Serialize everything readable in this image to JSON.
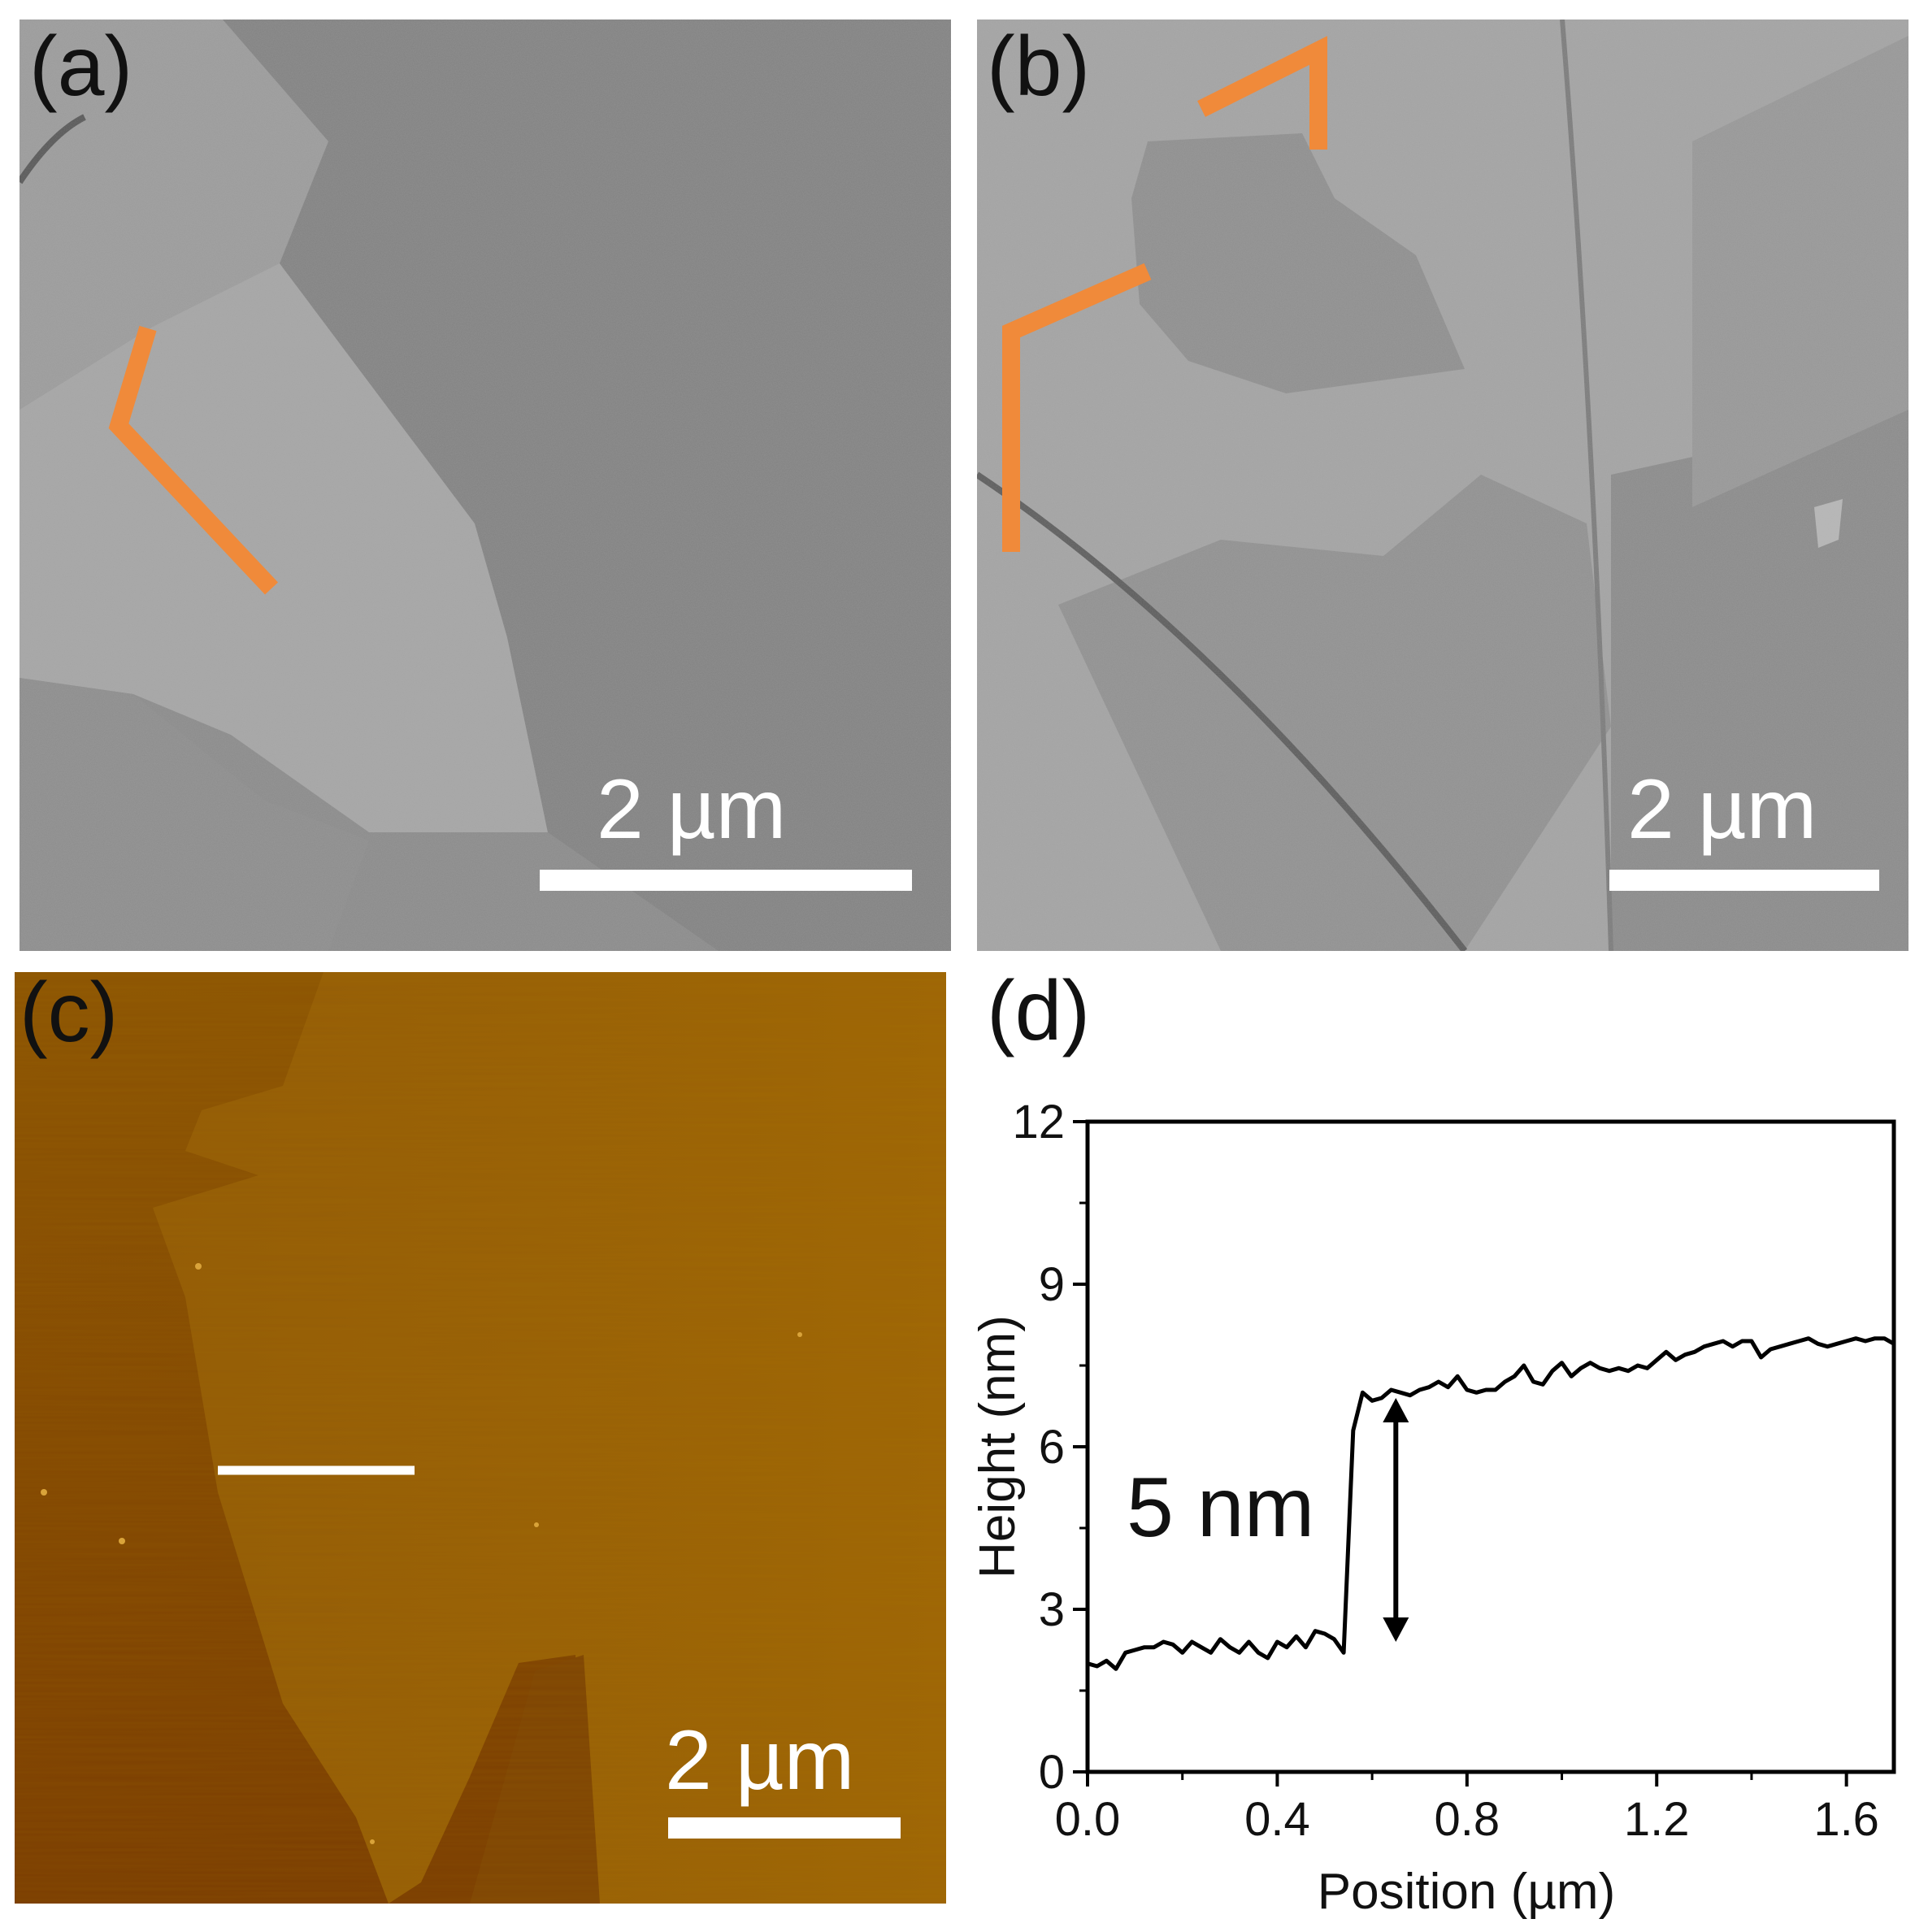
{
  "panels": {
    "a": {
      "label": "(a)",
      "scale_text": "2 µm",
      "highlight_color": "#f08a3a"
    },
    "b": {
      "label": "(b)",
      "scale_text": "2 µm",
      "highlight_color": "#f08a3a"
    },
    "c": {
      "label": "(c)",
      "scale_text": "2 µm",
      "profile_line_color": "#ffffff"
    },
    "d": {
      "label": "(d)"
    }
  },
  "chart_data": {
    "type": "line",
    "xlabel": "Position (µm)",
    "ylabel": "Height (nm)",
    "xlim": [
      0,
      1.7
    ],
    "ylim": [
      0,
      12
    ],
    "xticks": [
      0.0,
      0.4,
      0.8,
      1.2,
      1.6
    ],
    "xtick_labels": [
      "0.0",
      "0.4",
      "0.8",
      "1.2",
      "1.6"
    ],
    "yticks": [
      0,
      3,
      6,
      9,
      12
    ],
    "ytick_labels": [
      "0",
      "3",
      "6",
      "9",
      "12"
    ],
    "grid": false,
    "annotation": {
      "text": "5 nm",
      "arrow_x": 0.65,
      "arrow_y": [
        2.4,
        6.9
      ]
    },
    "series": [
      {
        "color": "#000000",
        "x": [
          0.0,
          0.02,
          0.04,
          0.06,
          0.08,
          0.1,
          0.12,
          0.14,
          0.16,
          0.18,
          0.2,
          0.22,
          0.24,
          0.26,
          0.28,
          0.3,
          0.32,
          0.34,
          0.36,
          0.38,
          0.4,
          0.42,
          0.44,
          0.46,
          0.48,
          0.5,
          0.52,
          0.54,
          0.56,
          0.58,
          0.6,
          0.62,
          0.64,
          0.66,
          0.68,
          0.7,
          0.72,
          0.74,
          0.76,
          0.78,
          0.8,
          0.82,
          0.84,
          0.86,
          0.88,
          0.9,
          0.92,
          0.94,
          0.96,
          0.98,
          1.0,
          1.02,
          1.04,
          1.06,
          1.08,
          1.1,
          1.12,
          1.14,
          1.16,
          1.18,
          1.2,
          1.22,
          1.24,
          1.26,
          1.28,
          1.3,
          1.32,
          1.34,
          1.36,
          1.38,
          1.4,
          1.42,
          1.44,
          1.46,
          1.48,
          1.5,
          1.52,
          1.54,
          1.56,
          1.58,
          1.6,
          1.62,
          1.64,
          1.66,
          1.68,
          1.7
        ],
        "y": [
          2.0,
          1.95,
          2.05,
          1.9,
          2.2,
          2.25,
          2.3,
          2.3,
          2.4,
          2.35,
          2.2,
          2.4,
          2.3,
          2.2,
          2.45,
          2.3,
          2.2,
          2.4,
          2.2,
          2.1,
          2.4,
          2.3,
          2.5,
          2.3,
          2.6,
          2.55,
          2.45,
          2.2,
          6.3,
          7.0,
          6.85,
          6.9,
          7.05,
          7.0,
          6.95,
          7.05,
          7.1,
          7.2,
          7.1,
          7.3,
          7.05,
          7.0,
          7.05,
          7.05,
          7.2,
          7.3,
          7.5,
          7.2,
          7.15,
          7.4,
          7.55,
          7.3,
          7.45,
          7.55,
          7.45,
          7.4,
          7.45,
          7.4,
          7.5,
          7.45,
          7.6,
          7.75,
          7.6,
          7.7,
          7.75,
          7.85,
          7.9,
          7.95,
          7.85,
          7.95,
          7.95,
          7.65,
          7.8,
          7.85,
          7.9,
          7.95,
          8.0,
          7.9,
          7.85,
          7.9,
          7.95,
          8.0,
          7.95,
          8.0,
          8.0,
          7.9
        ]
      }
    ]
  }
}
